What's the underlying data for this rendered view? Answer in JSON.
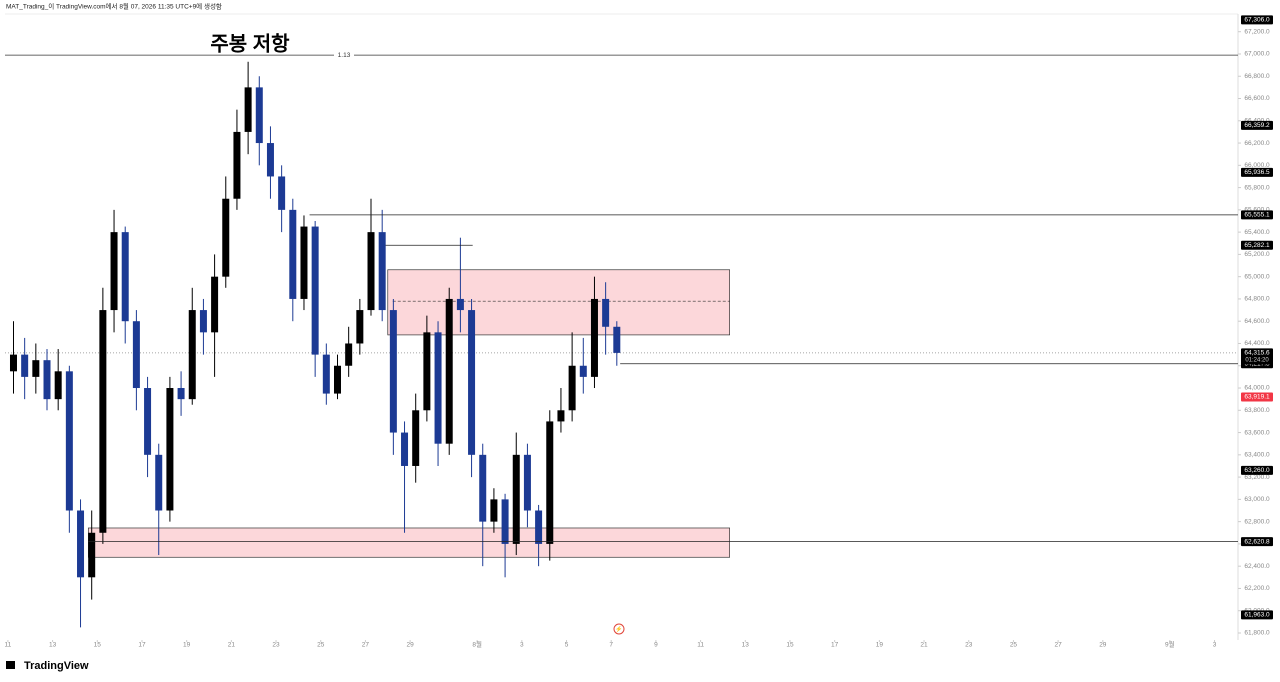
{
  "header": "MAT_Trading_이 TradingView.com에서 8월 07, 2026 11:35 UTC+9에 생성함",
  "brand": "TradingView",
  "chart_data": {
    "type": "candlestick",
    "annotation": "주봉 저항",
    "up_color": "#000000",
    "down_color": "#1c3a94",
    "xlim": [
      -0.13,
      55.05
    ],
    "ylim": [
      61737,
      67359
    ],
    "xticks": [
      {
        "value": 0,
        "label": "11"
      },
      {
        "value": 2,
        "label": "13"
      },
      {
        "value": 4,
        "label": "15"
      },
      {
        "value": 6,
        "label": "17"
      },
      {
        "value": 8,
        "label": "19"
      },
      {
        "value": 10,
        "label": "21"
      },
      {
        "value": 12,
        "label": "23"
      },
      {
        "value": 14,
        "label": "25"
      },
      {
        "value": 16,
        "label": "27"
      },
      {
        "value": 18,
        "label": "29"
      },
      {
        "value": 21,
        "label": "8월"
      },
      {
        "value": 23,
        "label": "3"
      },
      {
        "value": 25,
        "label": "5"
      },
      {
        "value": 27,
        "label": "7"
      },
      {
        "value": 29,
        "label": "9"
      },
      {
        "value": 31,
        "label": "11"
      },
      {
        "value": 33,
        "label": "13"
      },
      {
        "value": 35,
        "label": "15"
      },
      {
        "value": 37,
        "label": "17"
      },
      {
        "value": 39,
        "label": "19"
      },
      {
        "value": 41,
        "label": "21"
      },
      {
        "value": 43,
        "label": "23"
      },
      {
        "value": 45,
        "label": "25"
      },
      {
        "value": 47,
        "label": "27"
      },
      {
        "value": 49,
        "label": "29"
      },
      {
        "value": 52,
        "label": "9월"
      },
      {
        "value": 54,
        "label": "3"
      }
    ],
    "yticks": [
      {
        "value": 61800,
        "label": "61,800.0"
      },
      {
        "value": 62000,
        "label": "62,000.0"
      },
      {
        "value": 62200,
        "label": "62,200.0"
      },
      {
        "value": 62400,
        "label": "62,400.0"
      },
      {
        "value": 62600,
        "label": "62,600.0"
      },
      {
        "value": 62800,
        "label": "62,800.0"
      },
      {
        "value": 63000,
        "label": "63,000.0"
      },
      {
        "value": 63200,
        "label": "63,200.0"
      },
      {
        "value": 63400,
        "label": "63,400.0"
      },
      {
        "value": 63600,
        "label": "63,600.0"
      },
      {
        "value": 63800,
        "label": "63,800.0"
      },
      {
        "value": 64000,
        "label": "64,000.0"
      },
      {
        "value": 64200,
        "label": "64,200.0"
      },
      {
        "value": 64400,
        "label": "64,400.0"
      },
      {
        "value": 64600,
        "label": "64,600.0"
      },
      {
        "value": 64800,
        "label": "64,800.0"
      },
      {
        "value": 65000,
        "label": "65,000.0"
      },
      {
        "value": 65200,
        "label": "65,200.0"
      },
      {
        "value": 65400,
        "label": "65,400.0"
      },
      {
        "value": 65600,
        "label": "65,600.0"
      },
      {
        "value": 65800,
        "label": "65,800.0"
      },
      {
        "value": 66000,
        "label": "66,000.0"
      },
      {
        "value": 66200,
        "label": "66,200.0"
      },
      {
        "value": 66400,
        "label": "66,400.0"
      },
      {
        "value": 66600,
        "label": "66,600.0"
      },
      {
        "value": 66800,
        "label": "66,800.0"
      },
      {
        "value": 67000,
        "label": "67,000.0"
      },
      {
        "value": 67200,
        "label": "67,200.0"
      }
    ],
    "x": [
      0.25,
      0.75,
      1.25,
      1.75,
      2.25,
      2.75,
      3.25,
      3.75,
      4.25,
      4.75,
      5.25,
      5.75,
      6.25,
      6.75,
      7.25,
      7.75,
      8.25,
      8.75,
      9.25,
      9.75,
      10.25,
      10.75,
      11.25,
      11.75,
      12.25,
      12.75,
      13.25,
      13.75,
      14.25,
      14.75,
      15.25,
      15.75,
      16.25,
      16.75,
      17.25,
      17.75,
      18.25,
      18.75,
      19.25,
      19.75,
      20.25,
      20.75,
      21.25,
      21.75,
      22.25,
      22.75,
      23.25,
      23.75,
      24.25,
      24.75,
      25.25,
      25.75,
      26.25,
      26.75,
      27.25
    ],
    "open": [
      64150,
      64300,
      64100,
      64250,
      63900,
      64150,
      62900,
      62300,
      62700,
      64700,
      65400,
      64600,
      64000,
      63400,
      62900,
      64000,
      63900,
      64700,
      64500,
      65000,
      65700,
      66300,
      66700,
      66200,
      65900,
      65600,
      64800,
      65450,
      64300,
      63950,
      64200,
      64400,
      64700,
      65400,
      64700,
      63600,
      63300,
      63800,
      64500,
      63500,
      64800,
      64700,
      63400,
      62800,
      63000,
      62600,
      63400,
      62900,
      62600,
      63700,
      63800,
      64200,
      64100,
      64800,
      64550
    ],
    "high": [
      64600,
      64450,
      64400,
      64350,
      64350,
      64200,
      63000,
      62900,
      64900,
      65600,
      65450,
      64700,
      64100,
      63500,
      64100,
      64150,
      64900,
      64800,
      65200,
      65900,
      66500,
      66930,
      66800,
      66350,
      66000,
      65700,
      65550,
      65500,
      64400,
      64300,
      64550,
      64800,
      65700,
      65600,
      64800,
      63700,
      63950,
      64650,
      64600,
      64900,
      65350,
      64800,
      63500,
      63100,
      63050,
      63600,
      63500,
      62950,
      63800,
      64000,
      64500,
      64450,
      65000,
      64950,
      64600
    ],
    "low": [
      63950,
      63900,
      63950,
      63800,
      63800,
      62700,
      61850,
      62100,
      62600,
      64500,
      64400,
      63800,
      63200,
      62500,
      62800,
      63750,
      63850,
      64300,
      64100,
      64900,
      65600,
      66100,
      66000,
      65700,
      65400,
      64600,
      64700,
      64100,
      63850,
      63900,
      64100,
      64300,
      64650,
      64600,
      63400,
      62700,
      63150,
      63700,
      63300,
      63400,
      64500,
      63200,
      62400,
      62700,
      62300,
      62500,
      62750,
      62400,
      62450,
      63600,
      63700,
      63950,
      64000,
      64300,
      64200
    ],
    "close": [
      64300,
      64100,
      64250,
      63900,
      64150,
      62900,
      62300,
      62700,
      64700,
      65400,
      64600,
      64000,
      63400,
      62900,
      64000,
      63900,
      64700,
      64500,
      65000,
      65700,
      66300,
      66700,
      66200,
      65900,
      65600,
      64800,
      65450,
      64300,
      63950,
      64200,
      64400,
      64700,
      65400,
      64700,
      63600,
      63300,
      63800,
      64500,
      63500,
      64800,
      64700,
      63400,
      62800,
      63000,
      62600,
      63400,
      62900,
      62600,
      63700,
      63800,
      64200,
      64100,
      64800,
      64550,
      64315.6
    ],
    "fib_level": {
      "value": 66990,
      "label": "1.13"
    },
    "levels": [
      {
        "value": 65555.1,
        "label": "65,555.1",
        "x0": 13.5
      },
      {
        "value": 65282.1,
        "label": "65,282.1",
        "x0": 16.9,
        "x1": 20.8
      },
      {
        "value": 64217.8,
        "label": "64,217.8",
        "x0": 27.4
      },
      {
        "value": 62620.8,
        "label": "62,620.8",
        "x0": 3.6
      }
    ],
    "zones": [
      {
        "x0": 17.0,
        "x1": 32.3,
        "top": 65062,
        "bottom": 64477,
        "mid": 64780
      },
      {
        "x0": 3.6,
        "x1": 32.3,
        "top": 62743,
        "bottom": 62480
      }
    ],
    "price_tags": [
      {
        "value": 67306,
        "label": "67,306.0",
        "color": "#000000"
      },
      {
        "value": 66359.2,
        "label": "66,359.2",
        "color": "#000000"
      },
      {
        "value": 65936.5,
        "label": "65,936.5",
        "color": "#000000"
      },
      {
        "value": 63919.1,
        "label": "63,919.1",
        "color": "#f23645"
      },
      {
        "value": 63260,
        "label": "63,260.0",
        "color": "#000000"
      },
      {
        "value": 61963,
        "label": "61,963.0",
        "color": "#000000"
      }
    ],
    "current": {
      "value": 64315.6,
      "label": "64,315.6",
      "countdown": "01:24:20"
    }
  }
}
